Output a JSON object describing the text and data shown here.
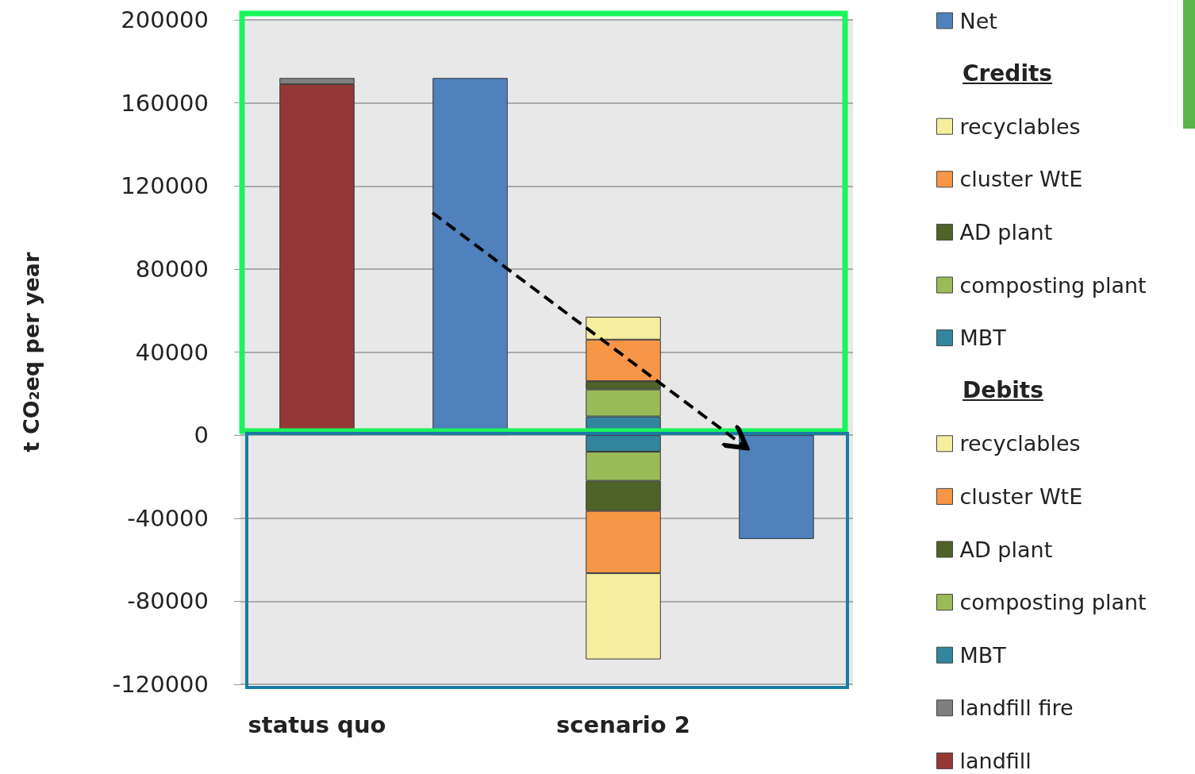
{
  "chart_data": {
    "type": "bar",
    "stacked": true,
    "ylabel": "t CO₂eq per year",
    "categories": [
      "status quo",
      null,
      "scenario 2",
      null
    ],
    "series": [
      {
        "name": "Net",
        "color": "#4f81bd",
        "values": [
          null,
          172000,
          null,
          -50000
        ]
      },
      {
        "name": "MBT",
        "color": "#31859c",
        "values": [
          null,
          null,
          -8000,
          null
        ]
      },
      {
        "name": "composting plant",
        "color": "#9bbb59",
        "values": [
          null,
          null,
          -14000,
          null
        ]
      },
      {
        "name": "AD plant",
        "color": "#4f6228",
        "values": [
          null,
          null,
          -14500,
          null
        ]
      },
      {
        "name": "cluster WtE",
        "color": "#f79646",
        "values": [
          null,
          null,
          -30000,
          null
        ]
      },
      {
        "name": "recyclables",
        "color": "#f5ee9e",
        "values": [
          null,
          null,
          -41500,
          null
        ]
      },
      {
        "name": "landfill",
        "color": "#953735",
        "values": [
          169000,
          null,
          null,
          null
        ]
      },
      {
        "name": "landfill fire",
        "color": "#7f7f7f",
        "values": [
          3000,
          null,
          null,
          null
        ]
      },
      {
        "name": "MBT",
        "color": "#31859c",
        "values": [
          null,
          null,
          9000,
          null
        ]
      },
      {
        "name": "composting plant",
        "color": "#9bbb59",
        "values": [
          null,
          null,
          13000,
          null
        ]
      },
      {
        "name": "AD plant",
        "color": "#4f6228",
        "values": [
          null,
          null,
          4000,
          null
        ]
      },
      {
        "name": "cluster WtE",
        "color": "#f79646",
        "values": [
          null,
          null,
          20000,
          null
        ]
      },
      {
        "name": "recyclables",
        "color": "#f5ee9e",
        "values": [
          null,
          null,
          11000,
          null
        ]
      }
    ],
    "annotations": [
      "Credits",
      "Debits"
    ],
    "ylim": [
      -120000,
      200000
    ],
    "yticks": [
      -120000,
      -80000,
      -40000,
      0,
      40000,
      80000,
      120000,
      160000,
      200000
    ],
    "grid": "y",
    "legend": "right"
  }
}
